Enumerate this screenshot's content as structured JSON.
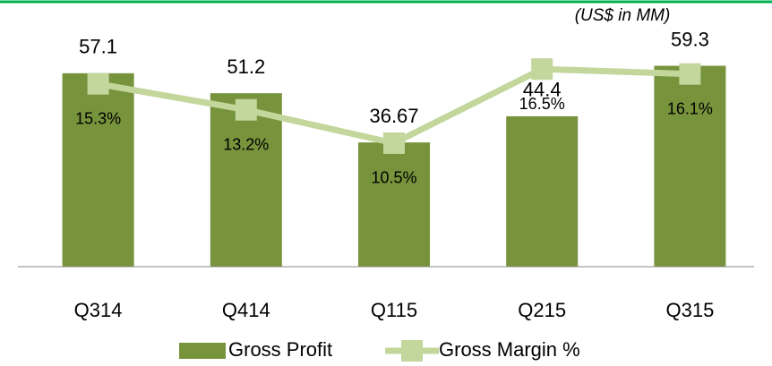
{
  "chart_data": {
    "type": "bar",
    "annotations": [
      "(US$ in MM)"
    ],
    "categories": [
      "Q314",
      "Q414",
      "Q115",
      "Q215",
      "Q315"
    ],
    "series": [
      {
        "name": "Gross Profit",
        "type": "bar",
        "color": "#77933c",
        "values": [
          57.1,
          51.2,
          36.67,
          44.4,
          59.3
        ]
      },
      {
        "name": "Gross Margin %",
        "type": "line",
        "axis": "y2",
        "color": "#c3d69b",
        "values": [
          15.3,
          13.2,
          10.5,
          16.5,
          16.1
        ],
        "value_labels": [
          "15.3%",
          "13.2%",
          "10.5%",
          "16.5%",
          "16.1%"
        ]
      }
    ],
    "ylim": [
      0,
      70
    ],
    "y2lim": [
      0.5,
      19.7
    ],
    "legend": "bottom"
  }
}
